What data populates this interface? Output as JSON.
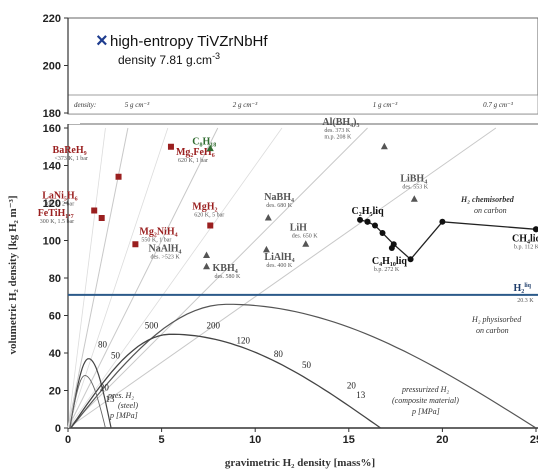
{
  "chart_data": {
    "type": "scatter",
    "xlabel": "gravimetric H₂ density [mass%]",
    "ylabel": "volumetric H₂ density [kg H₂ m⁻³]",
    "xlim": [
      0,
      25
    ],
    "ylim": [
      0,
      220
    ],
    "xticks": [
      "0",
      "5",
      "10",
      "15",
      "20",
      "25"
    ],
    "yticks": [
      "0",
      "20",
      "40",
      "60",
      "80",
      "100",
      "120",
      "140",
      "160",
      "180",
      "200",
      "220"
    ],
    "highlight": {
      "label": "high-entropy TiVZrNbHf",
      "density": "density 7.81 g.cm",
      "density_sup": "-3",
      "color": "#1f3d8f"
    },
    "density_label": "density:",
    "density_lines": [
      {
        "label": "5 g cm⁻³",
        "slope": 50
      },
      {
        "label": "2 g cm⁻³",
        "slope": 20
      },
      {
        "label": "1 g cm⁻³",
        "slope": 10
      },
      {
        "label": "0.7 g cm⁻³",
        "slope": 7
      }
    ],
    "compounds": [
      {
        "name": "BaReH₉",
        "x": 2.7,
        "y": 134,
        "marker": "square",
        "color": "#9a1f1f",
        "info": [
          "<373 K, 1 bar"
        ],
        "info_color": "#555"
      },
      {
        "name": "LaNi₅H₆",
        "x": 1.4,
        "y": 116,
        "marker": "square",
        "color": "#9a1f1f",
        "info": [
          "300 K, 2 bar"
        ],
        "info_color": "#555"
      },
      {
        "name": "FeTiH₁.₇",
        "x": 1.8,
        "y": 112,
        "marker": "square",
        "color": "#9a1f1f",
        "info": [
          "300 K, 1.5 bar"
        ],
        "info_color": "#555"
      },
      {
        "name": "Mg₂FeH₆",
        "x": 5.5,
        "y": 150,
        "marker": "square",
        "color": "#9a1f1f",
        "info": [
          "620 K, 1 bar"
        ],
        "info_color": "#555"
      },
      {
        "name": "Mg₂NiH₄",
        "x": 3.6,
        "y": 98,
        "marker": "square",
        "color": "#9a1f1f",
        "info": [
          "550 K, 1 bar"
        ],
        "info_color": "#555"
      },
      {
        "name": "C₈H₁₈",
        "x": 7.6,
        "y": 149,
        "marker": "triangle",
        "color": "#2f6b2f",
        "info": [],
        "info_color": "#555"
      },
      {
        "name": "MgH₂",
        "x": 7.6,
        "y": 108,
        "marker": "square",
        "color": "#9a1f1f",
        "info": [
          "620 K, 5 bar"
        ],
        "info_color": "#555"
      },
      {
        "name": "NaAlH₄",
        "x": 7.4,
        "y": 92,
        "marker": "triangle",
        "color": "#555555",
        "info": [
          "des. >523 K"
        ],
        "info_color": "#555"
      },
      {
        "name": "KBH₄",
        "x": 7.4,
        "y": 86,
        "marker": "triangle",
        "color": "#555555",
        "info": [
          "des. 580 K"
        ],
        "info_color": "#555"
      },
      {
        "name": "NaBH₄",
        "x": 10.7,
        "y": 112,
        "marker": "triangle",
        "color": "#555555",
        "info": [
          "des. 680 K"
        ],
        "info_color": "#555"
      },
      {
        "name": "LiAlH₄",
        "x": 10.6,
        "y": 95,
        "marker": "triangle",
        "color": "#555555",
        "info": [
          "des. 400 K"
        ],
        "info_color": "#555"
      },
      {
        "name": "LiH",
        "x": 12.7,
        "y": 98,
        "marker": "triangle",
        "color": "#555555",
        "info": [
          "des. 650 K"
        ],
        "info_color": "#555"
      },
      {
        "name": "Al(BH₄)₃",
        "x": 16.9,
        "y": 150,
        "marker": "triangle",
        "color": "#555555",
        "info": [
          "des. 373 K",
          "m.p. 208 K"
        ],
        "info_color": "#555"
      },
      {
        "name": "LiBH₄",
        "x": 18.5,
        "y": 122,
        "marker": "triangle",
        "color": "#555555",
        "info": [
          "des. 553 K"
        ],
        "info_color": "#555"
      },
      {
        "name": "C₂H₅liq",
        "x": 16.0,
        "y": 110,
        "marker": "circle",
        "color": "#111111",
        "info": [],
        "info_color": "#555"
      },
      {
        "name": "C₄H₁₀liq",
        "x": 17.3,
        "y": 96,
        "marker": "circle",
        "color": "#111111",
        "info": [
          "b.p. 272 K"
        ],
        "info_color": "#6b5b1f"
      },
      {
        "name": "CH₄liq",
        "x": 25.0,
        "y": 106,
        "marker": "circle",
        "color": "#111111",
        "info": [
          "b.p. 112 K"
        ],
        "info_color": "#555"
      }
    ],
    "chemisorbed_series": {
      "x": [
        15.6,
        16.0,
        16.4,
        16.8,
        17.4,
        18.3,
        20.0,
        25.0
      ],
      "y": [
        111,
        110,
        108,
        104,
        98,
        90,
        110,
        106
      ]
    },
    "h2_liquid": {
      "y": 71,
      "label": "H₂",
      "label_sup": "liq",
      "sub": "20.3 K"
    },
    "annotations": {
      "chemisorbed": [
        "H₂ chemisorbed",
        "on carbon"
      ],
      "physisorbed": [
        "H₂ physisorbed",
        "on carbon"
      ],
      "steel": [
        "pres. H₂",
        "(steel)",
        "p [MPa]"
      ],
      "composite": [
        "pressurized H₂",
        "(composite material)",
        "p [MPa]"
      ]
    },
    "pressure_labels_steel": [
      "80",
      "50",
      "20",
      "13"
    ],
    "pressure_labels_composite": [
      "500",
      "200",
      "120",
      "80",
      "50",
      "20",
      "13"
    ]
  }
}
